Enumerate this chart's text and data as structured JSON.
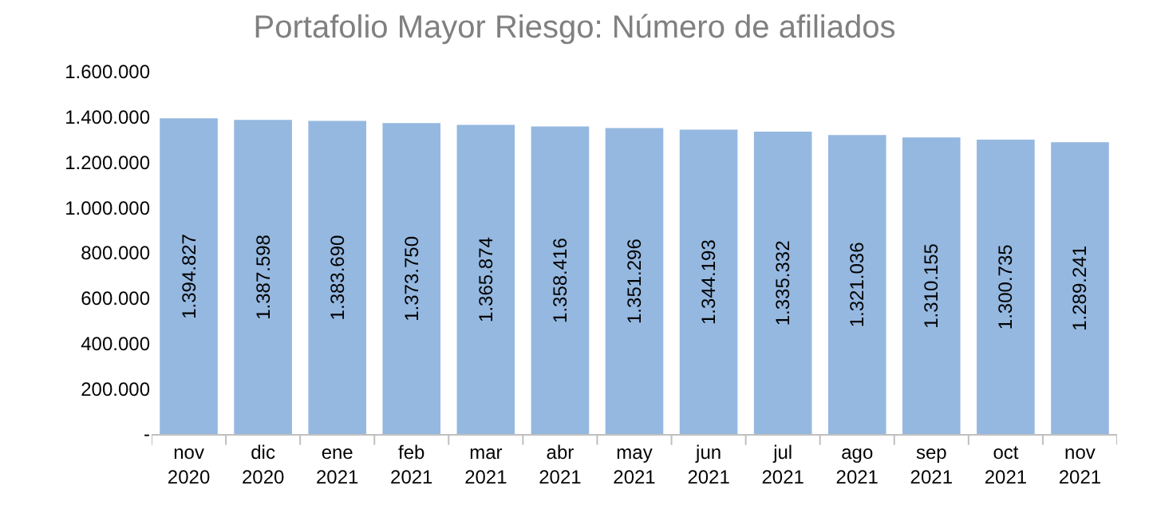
{
  "chart_data": {
    "type": "bar",
    "title": "Portafolio Mayor Riesgo: Número de afiliados",
    "categories": [
      "nov 2020",
      "dic 2020",
      "ene 2021",
      "feb 2021",
      "mar 2021",
      "abr 2021",
      "may 2021",
      "jun 2021",
      "jul 2021",
      "ago 2021",
      "sep 2021",
      "oct 2021",
      "nov 2021"
    ],
    "values": [
      1394827,
      1387598,
      1383690,
      1373750,
      1365874,
      1358416,
      1351296,
      1344193,
      1335332,
      1321036,
      1310155,
      1300735,
      1289241
    ],
    "color": "#95b8e0",
    "ylim": [
      0,
      1600000
    ],
    "yticks": [
      {
        "value": 0,
        "label": "-"
      },
      {
        "value": 200000,
        "label": "200.000"
      },
      {
        "value": 400000,
        "label": "400.000"
      },
      {
        "value": 600000,
        "label": "600.000"
      },
      {
        "value": 800000,
        "label": "800.000"
      },
      {
        "value": 1000000,
        "label": "1.000.000"
      },
      {
        "value": 1200000,
        "label": "1.200.000"
      },
      {
        "value": 1400000,
        "label": "1.400.000"
      },
      {
        "value": 1600000,
        "label": "1.600.000"
      }
    ],
    "value_labels": [
      "1.394.827",
      "1.387.598",
      "1.383.690",
      "1.373.750",
      "1.365.874",
      "1.358.416",
      "1.351.296",
      "1.344.193",
      "1.335.332",
      "1.321.036",
      "1.310.155",
      "1.300.735",
      "1.289.241"
    ]
  }
}
